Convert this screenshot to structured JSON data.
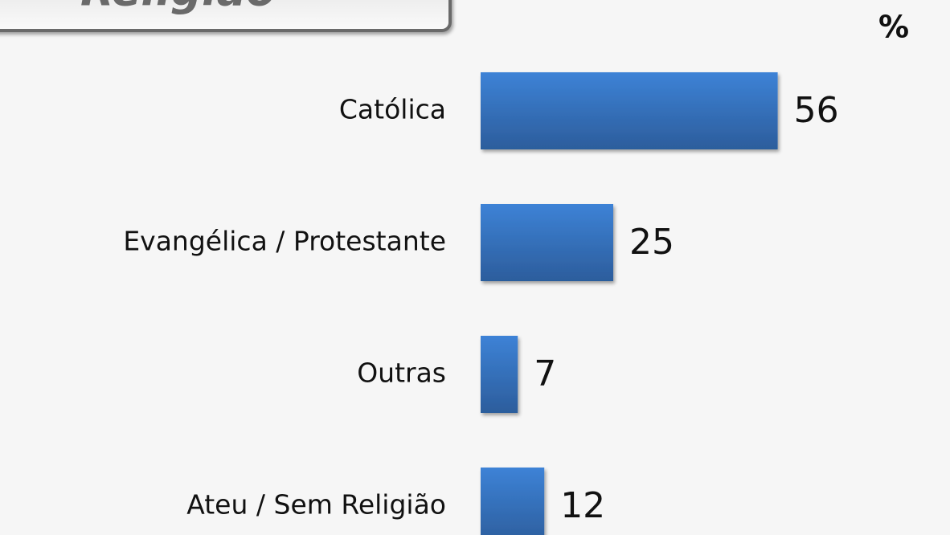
{
  "chart_data": {
    "type": "bar",
    "orientation": "horizontal",
    "title": "Religião",
    "unit": "%",
    "categories": [
      "Católica",
      "Evangélica / Protestante",
      "Outras",
      "Ateu / Sem Religião"
    ],
    "values": [
      56,
      25,
      7,
      12
    ],
    "color": "#3a78c8"
  }
}
